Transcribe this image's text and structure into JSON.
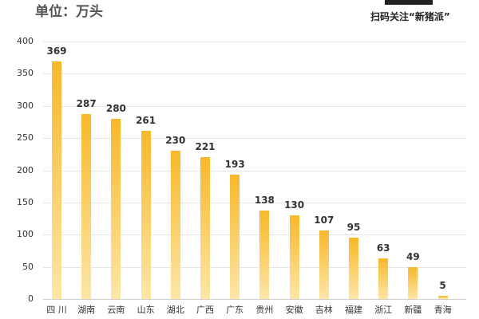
{
  "header": {
    "unit_label": "单位：万头",
    "scan_text": "扫码关注“新猪派”"
  },
  "chart_data": {
    "type": "bar",
    "title": "",
    "xlabel": "",
    "ylabel": "单位：万头",
    "ylim": [
      0,
      400
    ],
    "yticks": [
      0,
      50,
      100,
      150,
      200,
      250,
      300,
      350,
      400
    ],
    "grid": true,
    "categories": [
      "四 川",
      "湖南",
      "云南",
      "山东",
      "湖北",
      "广西",
      "广东",
      "贵州",
      "安徽",
      "吉林",
      "福建",
      "浙江",
      "新疆",
      "青海"
    ],
    "values": [
      369,
      287,
      280,
      261,
      230,
      221,
      193,
      138,
      130,
      107,
      95,
      63,
      49,
      5
    ],
    "colors": {
      "bar_top": "#f8b82a",
      "bar_bottom": "#fde6a6"
    }
  }
}
